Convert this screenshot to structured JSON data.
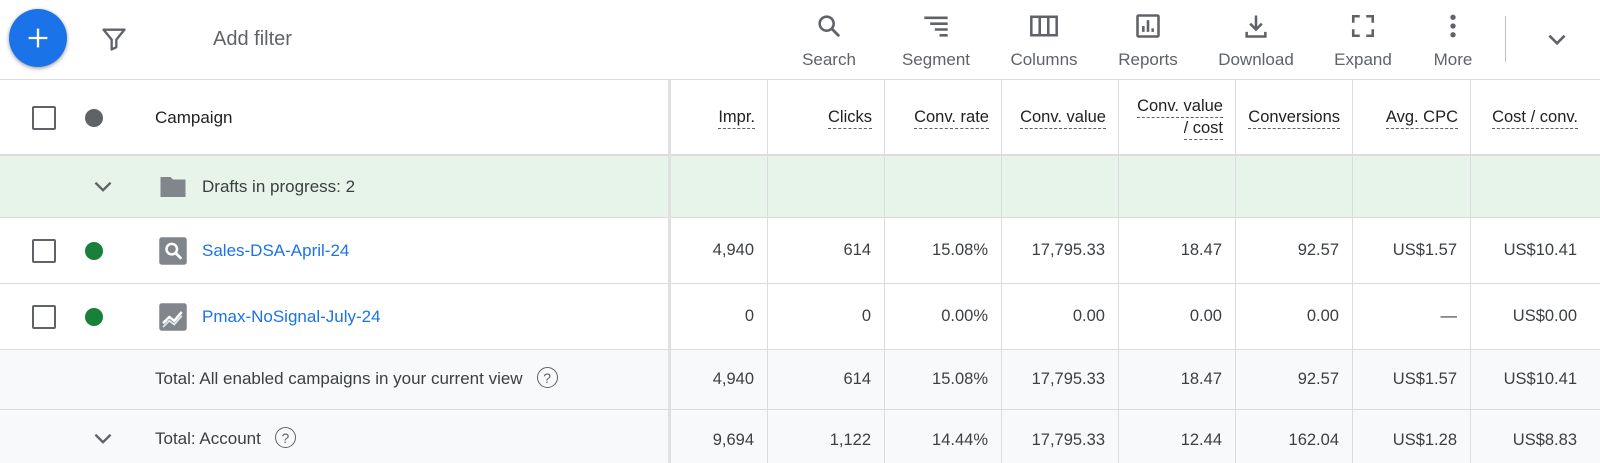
{
  "toolbar": {
    "add_filter_placeholder": "Add filter",
    "tools": [
      {
        "label": "Search",
        "icon": "search-icon"
      },
      {
        "label": "Segment",
        "icon": "segment-icon"
      },
      {
        "label": "Columns",
        "icon": "columns-icon"
      },
      {
        "label": "Reports",
        "icon": "reports-icon"
      },
      {
        "label": "Download",
        "icon": "download-icon"
      },
      {
        "label": "Expand",
        "icon": "expand-icon"
      },
      {
        "label": "More",
        "icon": "more-vert-icon"
      }
    ]
  },
  "table": {
    "campaign_header": "Campaign",
    "columns": [
      "Impr.",
      "Clicks",
      "Conv. rate",
      "Conv. value",
      "Conv. value / cost",
      "Conversions",
      "Avg. CPC",
      "Cost / conv."
    ],
    "column_lines": [
      [
        "Impr."
      ],
      [
        "Clicks"
      ],
      [
        "Conv. rate"
      ],
      [
        "Conv. value"
      ],
      [
        "Conv. value",
        "/ cost"
      ],
      [
        "Conversions"
      ],
      [
        "Avg. CPC"
      ],
      [
        "Cost / conv."
      ]
    ],
    "drafts_label": "Drafts in progress: 2",
    "rows": [
      {
        "name": "Sales-DSA-April-24",
        "status": "enabled",
        "type_icon": "search-campaign-icon",
        "values": [
          "4,940",
          "614",
          "15.08%",
          "17,795.33",
          "18.47",
          "92.57",
          "US$1.57",
          "US$10.41"
        ]
      },
      {
        "name": "Pmax-NoSignal-July-24",
        "status": "enabled",
        "type_icon": "performance-max-icon",
        "values": [
          "0",
          "0",
          "0.00%",
          "0.00",
          "0.00",
          "0.00",
          "—",
          "US$0.00"
        ]
      }
    ],
    "totals": [
      {
        "label": "Total: All enabled campaigns in your current view",
        "values": [
          "4,940",
          "614",
          "15.08%",
          "17,795.33",
          "18.47",
          "92.57",
          "US$1.57",
          "US$10.41"
        ]
      },
      {
        "label": "Total: Account",
        "values": [
          "9,694",
          "1,122",
          "14.44%",
          "17,795.33",
          "12.44",
          "162.04",
          "US$1.28",
          "US$8.83"
        ]
      }
    ]
  },
  "colors": {
    "accent": "#1a73e8",
    "enabled": "#188038",
    "drafts_bg": "#e6f4ea",
    "totals_bg": "#f8f9fa"
  }
}
